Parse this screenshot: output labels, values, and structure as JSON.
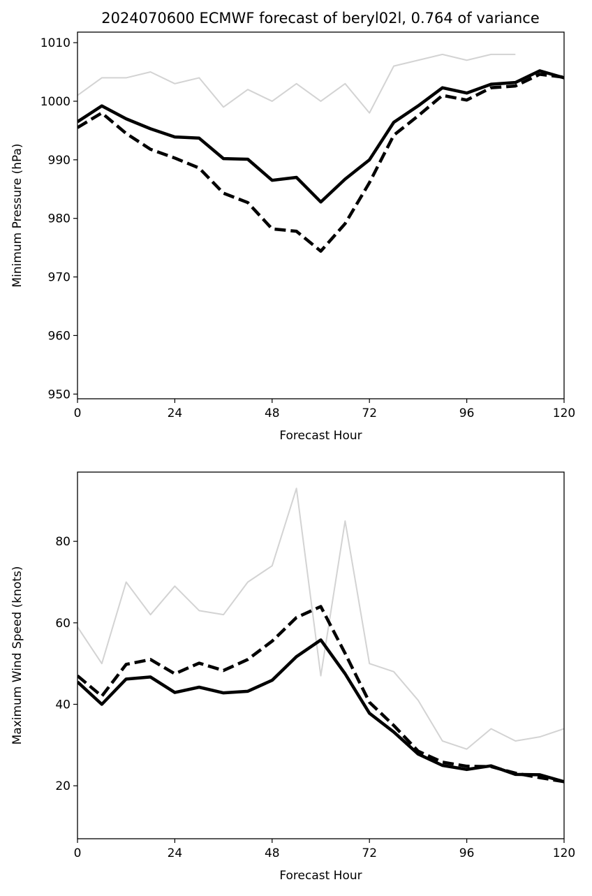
{
  "title": "2024070600 ECMWF forecast of beryl02l, 0.764 of variance",
  "colors": {
    "ensemble": "#d3d3d3",
    "highlight": "#000000"
  },
  "chart_data": [
    {
      "type": "line",
      "xlabel": "Forecast Hour",
      "ylabel": "Minimum Pressure (hPa)",
      "xlim": [
        0,
        120
      ],
      "ylim": [
        949.2,
        1011.8
      ],
      "xticks": [
        "0",
        "24",
        "48",
        "72",
        "96",
        "120"
      ],
      "yticks": [
        "950",
        "960",
        "970",
        "980",
        "990",
        "1000",
        "1010"
      ],
      "x": [
        0,
        6,
        12,
        18,
        24,
        30,
        36,
        42,
        48,
        54,
        60,
        66,
        72,
        78,
        84,
        90,
        96,
        102,
        108,
        114,
        120
      ],
      "series": [
        {
          "style": "solid",
          "values": [
            996.5,
            999.2,
            997.0,
            995.3,
            993.9,
            993.7,
            990.2,
            990.1,
            986.5,
            987.0,
            982.8,
            986.7,
            990.0,
            996.4,
            999.2,
            1002.3,
            1001.4,
            1002.9,
            1003.2,
            1005.2,
            1004.0
          ]
        },
        {
          "style": "dashed",
          "values": [
            995.5,
            998.0,
            994.5,
            991.8,
            990.3,
            988.6,
            984.3,
            982.7,
            978.2,
            977.8,
            974.4,
            979.1,
            986.1,
            994.2,
            997.5,
            1001.0,
            1000.2,
            1002.3,
            1002.6,
            1004.6,
            1004.1
          ]
        }
      ],
      "ensemble": [
        [
          1001,
          1004,
          1004,
          1005,
          1003,
          1004,
          999,
          1002,
          1000,
          1003,
          1000,
          1003,
          998,
          1006,
          1007,
          1008,
          1007,
          1008,
          1008
        ]
      ]
    },
    {
      "type": "line",
      "xlabel": "Forecast Hour",
      "ylabel": "Maximum Wind Speed (knots)",
      "xlim": [
        0,
        120
      ],
      "ylim": [
        7,
        97
      ],
      "xticks": [
        "0",
        "24",
        "48",
        "72",
        "96",
        "120"
      ],
      "yticks": [
        "20",
        "40",
        "60",
        "80"
      ],
      "x": [
        0,
        6,
        12,
        18,
        24,
        30,
        36,
        42,
        48,
        54,
        60,
        66,
        72,
        78,
        84,
        90,
        96,
        102,
        108,
        114,
        120
      ],
      "series": [
        {
          "style": "solid",
          "values": [
            45.5,
            40.0,
            46.2,
            46.7,
            42.9,
            44.2,
            42.8,
            43.2,
            45.9,
            51.7,
            55.8,
            47.5,
            37.8,
            33.2,
            27.8,
            25.0,
            24.0,
            24.9,
            22.8,
            22.7,
            21.0
          ]
        },
        {
          "style": "dashed",
          "values": [
            47.0,
            42.0,
            49.8,
            51.0,
            47.5,
            50.1,
            48.3,
            51.0,
            55.5,
            61.3,
            64.0,
            52.5,
            40.5,
            34.8,
            28.5,
            25.8,
            24.8,
            24.7,
            23.1,
            22.0,
            21.0
          ]
        }
      ],
      "ensemble": [
        [
          59,
          50,
          70,
          62,
          69,
          63,
          62,
          70,
          74,
          93,
          47,
          85,
          50,
          48,
          41,
          31,
          29,
          34,
          31,
          32,
          34
        ]
      ]
    }
  ]
}
